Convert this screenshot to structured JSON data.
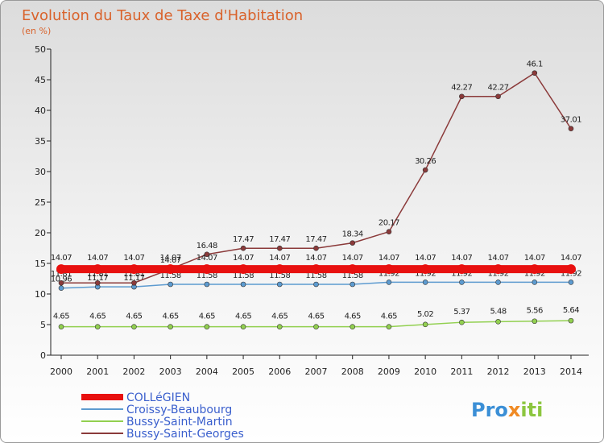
{
  "chart_data": {
    "type": "line",
    "title": "Evolution du Taux de Taxe d'Habitation",
    "subtitle": "(en %)",
    "xlabel": "",
    "ylabel": "",
    "x": [
      "2000",
      "2001",
      "2002",
      "2003",
      "2004",
      "2005",
      "2006",
      "2007",
      "2008",
      "2009",
      "2010",
      "2011",
      "2012",
      "2013",
      "2014"
    ],
    "ylim": [
      0,
      50
    ],
    "yticks": [
      0,
      5,
      10,
      15,
      20,
      25,
      30,
      35,
      40,
      45,
      50
    ],
    "grid": false,
    "legend_position": "bottom-left",
    "series": [
      {
        "name": "COLLéGIEN",
        "color": "#e8100f",
        "values": [
          14.07,
          14.07,
          14.07,
          14.07,
          14.07,
          14.07,
          14.07,
          14.07,
          14.07,
          14.07,
          14.07,
          14.07,
          14.07,
          14.07,
          14.07
        ],
        "labels": [
          "14.07",
          "14.07",
          "14.07",
          "14.07",
          "14.07",
          "14.07",
          "14.07",
          "14.07",
          "14.07",
          "14.07",
          "14.07",
          "14.07",
          "14.07",
          "14.07",
          "14.07"
        ]
      },
      {
        "name": "Croissy-Beaubourg",
        "color": "#5d9bd0",
        "values": [
          10.96,
          11.17,
          11.17,
          11.58,
          11.58,
          11.58,
          11.58,
          11.58,
          11.58,
          11.92,
          11.92,
          11.92,
          11.92,
          11.92,
          11.92
        ],
        "labels": [
          "10.96",
          "11.17",
          "11.17",
          "11.58",
          "11.58",
          "11.58",
          "11.58",
          "11.58",
          "11.58",
          "11.92",
          "11.92",
          "11.92",
          "11.92",
          "11.92",
          "11.92"
        ]
      },
      {
        "name": "Bussy-Saint-Martin",
        "color": "#92d050",
        "values": [
          4.65,
          4.65,
          4.65,
          4.65,
          4.65,
          4.65,
          4.65,
          4.65,
          4.65,
          4.65,
          5.02,
          5.37,
          5.48,
          5.56,
          5.64
        ],
        "labels": [
          "4.65",
          "4.65",
          "4.65",
          "4.65",
          "4.65",
          "4.65",
          "4.65",
          "4.65",
          "4.65",
          "4.65",
          "5.02",
          "5.37",
          "5.48",
          "5.56",
          "5.64"
        ]
      },
      {
        "name": "Bussy-Saint-Georges",
        "color": "#8b3a3a",
        "values": [
          11.81,
          11.81,
          11.81,
          14.07,
          16.48,
          17.47,
          17.47,
          17.47,
          18.34,
          20.17,
          30.26,
          42.27,
          42.27,
          46.1,
          37.01
        ],
        "labels": [
          "11.81",
          "11.81",
          "11.81",
          "14.07",
          "16.48",
          "17.47",
          "17.47",
          "17.47",
          "18.34",
          "20.17",
          "30.26",
          "42.27",
          "42.27",
          "46.1",
          "37.01"
        ]
      }
    ]
  },
  "logo": {
    "text_1": "Pro",
    "text_x": "x",
    "text_2": "iti"
  }
}
